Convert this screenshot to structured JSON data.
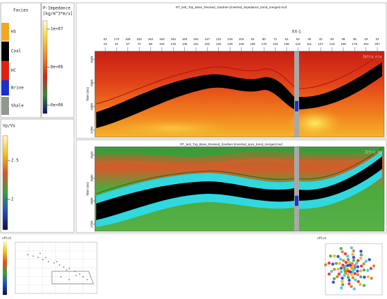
{
  "legend": {
    "title": "Facies",
    "items": [
      "HS",
      "Coal",
      "HC",
      "Brine",
      "Shale"
    ]
  },
  "impedance_bar": {
    "title": "P-Impedance",
    "unit": "[kg/m^3*m/s]",
    "ticks": [
      "1e+07",
      "8e+06",
      "6e+06"
    ]
  },
  "vpvs_bar": {
    "title": "Vp/Vs",
    "ticks": [
      "2.5",
      "2"
    ]
  },
  "sections": [
    {
      "title": "RT_test_Top_Base_Revised_Gardner-(Inverted_impedance_trend_merged.mod",
      "well": "XX-1",
      "attribute": "Zetra_ora",
      "row1": [
        "81",
        "173",
        "165",
        "162",
        "162",
        "162",
        "162",
        "163",
        "161",
        "147",
        "131",
        "218",
        "104",
        "91",
        "80",
        "71",
        "61",
        "52",
        "46",
        "42",
        "40",
        "38",
        "36",
        "33",
        "31"
      ],
      "row2": [
        "23",
        "41",
        "57",
        "72",
        "88",
        "104",
        "120",
        "135",
        "151",
        "152",
        "132",
        "139",
        "149",
        "165",
        "170",
        "134",
        "136",
        "122",
        "111",
        "127",
        "143",
        "159",
        "175",
        "191",
        "207"
      ],
      "y_axis_title": "Time (ms)",
      "y_ticks": [
        "2640",
        "2660",
        "2680",
        "2700"
      ]
    },
    {
      "title": "RT_test_Top_Base_Revised_Gardner-(Inverted_vpvs_trend_merged.mod",
      "attribute": "Zetra_Vp",
      "y_axis_title": "Time (ms)",
      "y_ticks": [
        "2640",
        "2660",
        "2680",
        "2700"
      ]
    }
  ],
  "thumbnails": {
    "left": "xPlot",
    "right": "xPlot"
  }
}
